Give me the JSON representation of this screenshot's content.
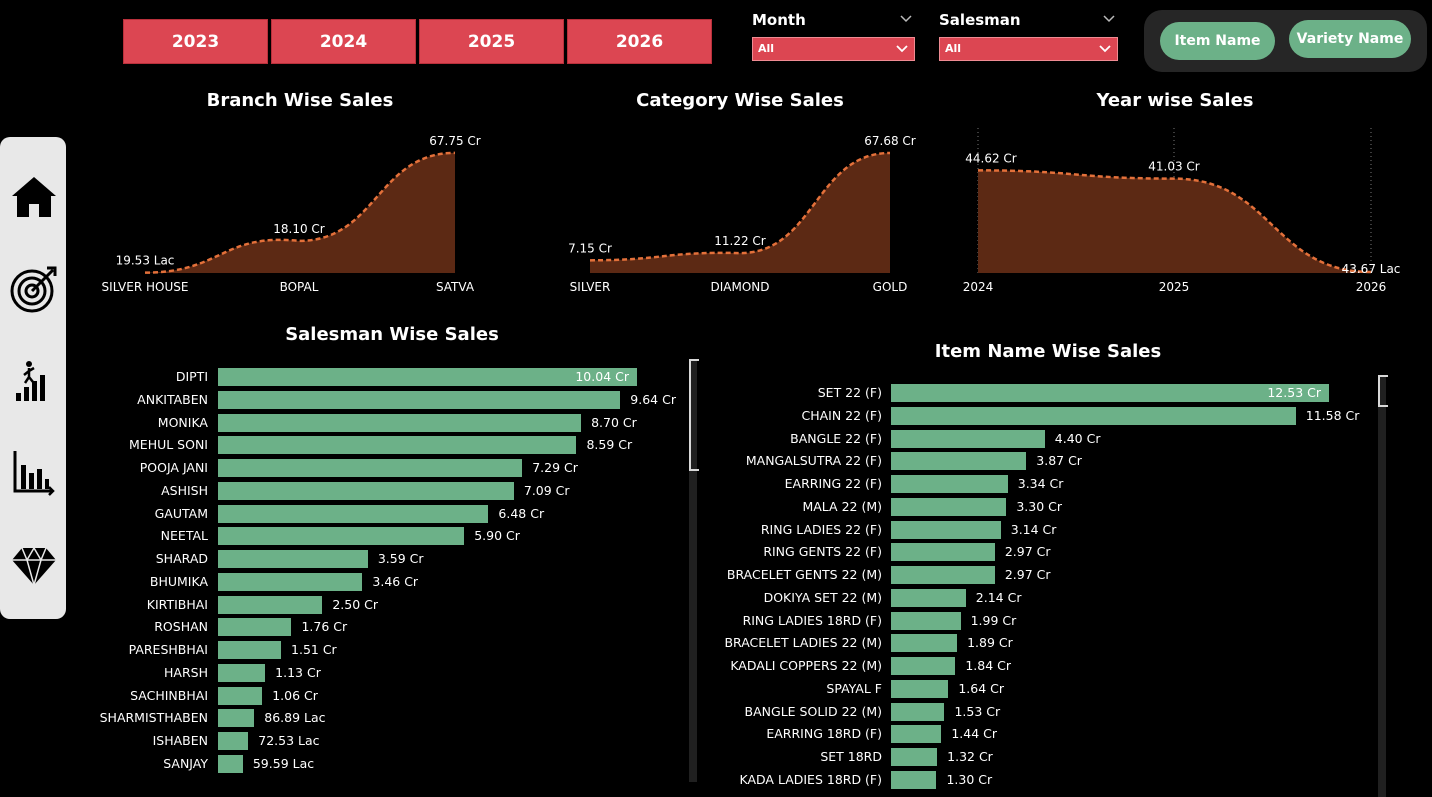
{
  "years": [
    "2023",
    "2024",
    "2025",
    "2026"
  ],
  "filters": {
    "month": {
      "label": "Month",
      "value": "All"
    },
    "salesman": {
      "label": "Salesman",
      "value": "All"
    }
  },
  "toggle_buttons": {
    "item_name": "Item Name",
    "variety_name": "Variety Name"
  },
  "nav_icons": [
    "home-icon",
    "target-icon",
    "growth-icon",
    "bar-chart-icon",
    "diamond-icon"
  ],
  "colors": {
    "accent_red": "#dc4652",
    "bar_green": "#6cb188",
    "area_brown": "#5c2914",
    "area_line": "#e3703a"
  },
  "chart_data": [
    {
      "type": "area",
      "title": "Branch Wise Sales",
      "categories": [
        "SILVER HOUSE",
        "BOPAL",
        "SATVA"
      ],
      "values": [
        0.1953,
        18.1,
        67.75
      ],
      "labels": [
        "19.53 Lac",
        "18.10 Cr",
        "67.75 Cr"
      ],
      "unit": "Cr",
      "ylim": [
        0,
        75
      ]
    },
    {
      "type": "area",
      "title": "Category Wise Sales",
      "categories": [
        "SILVER",
        "DIAMOND",
        "GOLD"
      ],
      "values": [
        7.15,
        11.22,
        67.68
      ],
      "labels": [
        "7.15 Cr",
        "11.22 Cr",
        "67.68 Cr"
      ],
      "unit": "Cr",
      "ylim": [
        0,
        75
      ]
    },
    {
      "type": "area",
      "title": "Year wise Sales",
      "categories": [
        "2024",
        "2025",
        "2026"
      ],
      "values": [
        44.62,
        41.03,
        0.4367
      ],
      "labels": [
        "44.62 Cr",
        "41.03 Cr",
        "43.67 Lac"
      ],
      "unit": "Cr",
      "ylim": [
        0,
        50
      ]
    },
    {
      "type": "bar",
      "title": "Salesman Wise Sales",
      "categories": [
        "DIPTI",
        "ANKITABEN",
        "MONIKA",
        "MEHUL SONI",
        "POOJA JANI",
        "ASHISH",
        "GAUTAM",
        "NEETAL",
        "SHARAD",
        "BHUMIKA",
        "KIRTIBHAI",
        "ROSHAN",
        "PARESHBHAI",
        "HARSH",
        "SACHINBHAI",
        "SHARMISTHABEN",
        "ISHABEN",
        "SANJAY"
      ],
      "values": [
        10.04,
        9.64,
        8.7,
        8.59,
        7.29,
        7.09,
        6.48,
        5.9,
        3.59,
        3.46,
        2.5,
        1.76,
        1.51,
        1.13,
        1.06,
        0.8689,
        0.7253,
        0.5959
      ],
      "labels": [
        "10.04 Cr",
        "9.64 Cr",
        "8.70 Cr",
        "8.59 Cr",
        "7.29 Cr",
        "7.09 Cr",
        "6.48 Cr",
        "5.90 Cr",
        "3.59 Cr",
        "3.46 Cr",
        "2.50 Cr",
        "1.76 Cr",
        "1.51 Cr",
        "1.13 Cr",
        "1.06 Cr",
        "86.89 Lac",
        "72.53 Lac",
        "59.59 Lac"
      ],
      "unit": "Cr"
    },
    {
      "type": "bar",
      "title": "Item Name Wise Sales",
      "categories": [
        "SET 22 (F)",
        "CHAIN 22 (F)",
        "BANGLE 22 (F)",
        "MANGALSUTRA 22 (F)",
        "EARRING 22 (F)",
        "MALA 22 (M)",
        "RING LADIES 22 (F)",
        "RING GENTS 22 (F)",
        "BRACELET GENTS 22 (M)",
        "DOKIYA SET 22 (M)",
        "RING LADIES 18RD (F)",
        "BRACELET LADIES 22 (M)",
        "KADALI COPPERS 22 (M)",
        "SPAYAL F",
        "BANGLE SOLID 22 (M)",
        "EARRING 18RD (F)",
        "SET 18RD",
        "KADA LADIES 18RD (F)"
      ],
      "values": [
        12.53,
        11.58,
        4.4,
        3.87,
        3.34,
        3.3,
        3.14,
        2.97,
        2.97,
        2.14,
        1.99,
        1.89,
        1.84,
        1.64,
        1.53,
        1.44,
        1.32,
        1.3
      ],
      "labels": [
        "12.53 Cr",
        "11.58 Cr",
        "4.40 Cr",
        "3.87 Cr",
        "3.34 Cr",
        "3.30 Cr",
        "3.14 Cr",
        "2.97 Cr",
        "2.97 Cr",
        "2.14 Cr",
        "1.99 Cr",
        "1.89 Cr",
        "1.84 Cr",
        "1.64 Cr",
        "1.53 Cr",
        "1.44 Cr",
        "1.32 Cr",
        "1.30 Cr"
      ],
      "unit": "Cr"
    }
  ]
}
